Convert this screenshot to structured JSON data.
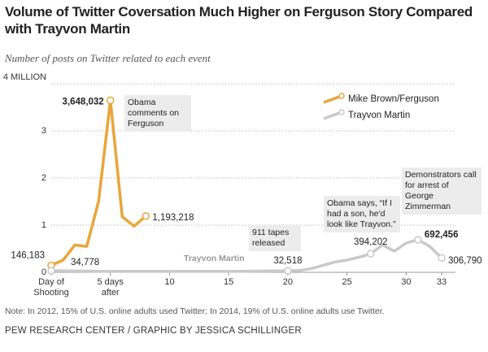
{
  "chart_data": {
    "type": "line",
    "title": "Volume of Twitter Coversation Much Higher on Ferguson Story Compared with Trayvon Martin",
    "subtitle": "Number of posts on Twitter related to each event",
    "note": "Note: In 2012, 15% of U.S. online adults used Twitter; In 2014, 19% of U.S. online adults use Twitter.",
    "source": "PEW RESEARCH CENTER / GRAPHIC BY JESSICA SCHILLINGER",
    "xlim": [
      0,
      33
    ],
    "xticks": [
      {
        "value": 0,
        "label": "Day of Shooting"
      },
      {
        "value": 5,
        "label": "5 days after"
      },
      10,
      15,
      20,
      25,
      30,
      33
    ],
    "ylim": [
      0,
      4
    ],
    "yticks": [
      0,
      1,
      2,
      3,
      {
        "value": 4,
        "label": "4 MILLION"
      }
    ],
    "grid": true,
    "series": [
      {
        "name": "Mike Brown/Ferguson",
        "color": "#e9a53c",
        "x": [
          0,
          1,
          2,
          3,
          4,
          5,
          6,
          7,
          8
        ],
        "values": [
          0.146183,
          0.26,
          0.58,
          0.55,
          1.5,
          3.648032,
          1.18,
          0.98,
          1.193218
        ],
        "value_labels": [
          "146,183",
          null,
          null,
          null,
          null,
          "3,648,032",
          null,
          null,
          "1,193,218"
        ]
      },
      {
        "name": "Trayvon Martin",
        "color": "#c9c9c9",
        "x": [
          0,
          5,
          10,
          15,
          20,
          21,
          22,
          23,
          24,
          25,
          26,
          27,
          28,
          29,
          30,
          31,
          32,
          33
        ],
        "values": [
          0.034778,
          0.02,
          0.02,
          0.02,
          0.032518,
          0.04,
          0.08,
          0.15,
          0.22,
          0.26,
          0.32,
          0.394202,
          0.58,
          0.45,
          0.62,
          0.692456,
          0.55,
          0.30679
        ],
        "value_labels": [
          "34,778",
          null,
          null,
          null,
          "32,518",
          null,
          null,
          null,
          null,
          null,
          null,
          "394,202",
          null,
          null,
          null,
          "692,456",
          null,
          "306,790"
        ]
      }
    ],
    "annotations": [
      "Obama comments on Ferguson",
      "Trayvon Martin",
      "911 tapes released",
      "Obama says, “If I had a son, he'd look like Trayvon.”",
      "Demonstrators call for arrest of George Zimmerman"
    ]
  }
}
